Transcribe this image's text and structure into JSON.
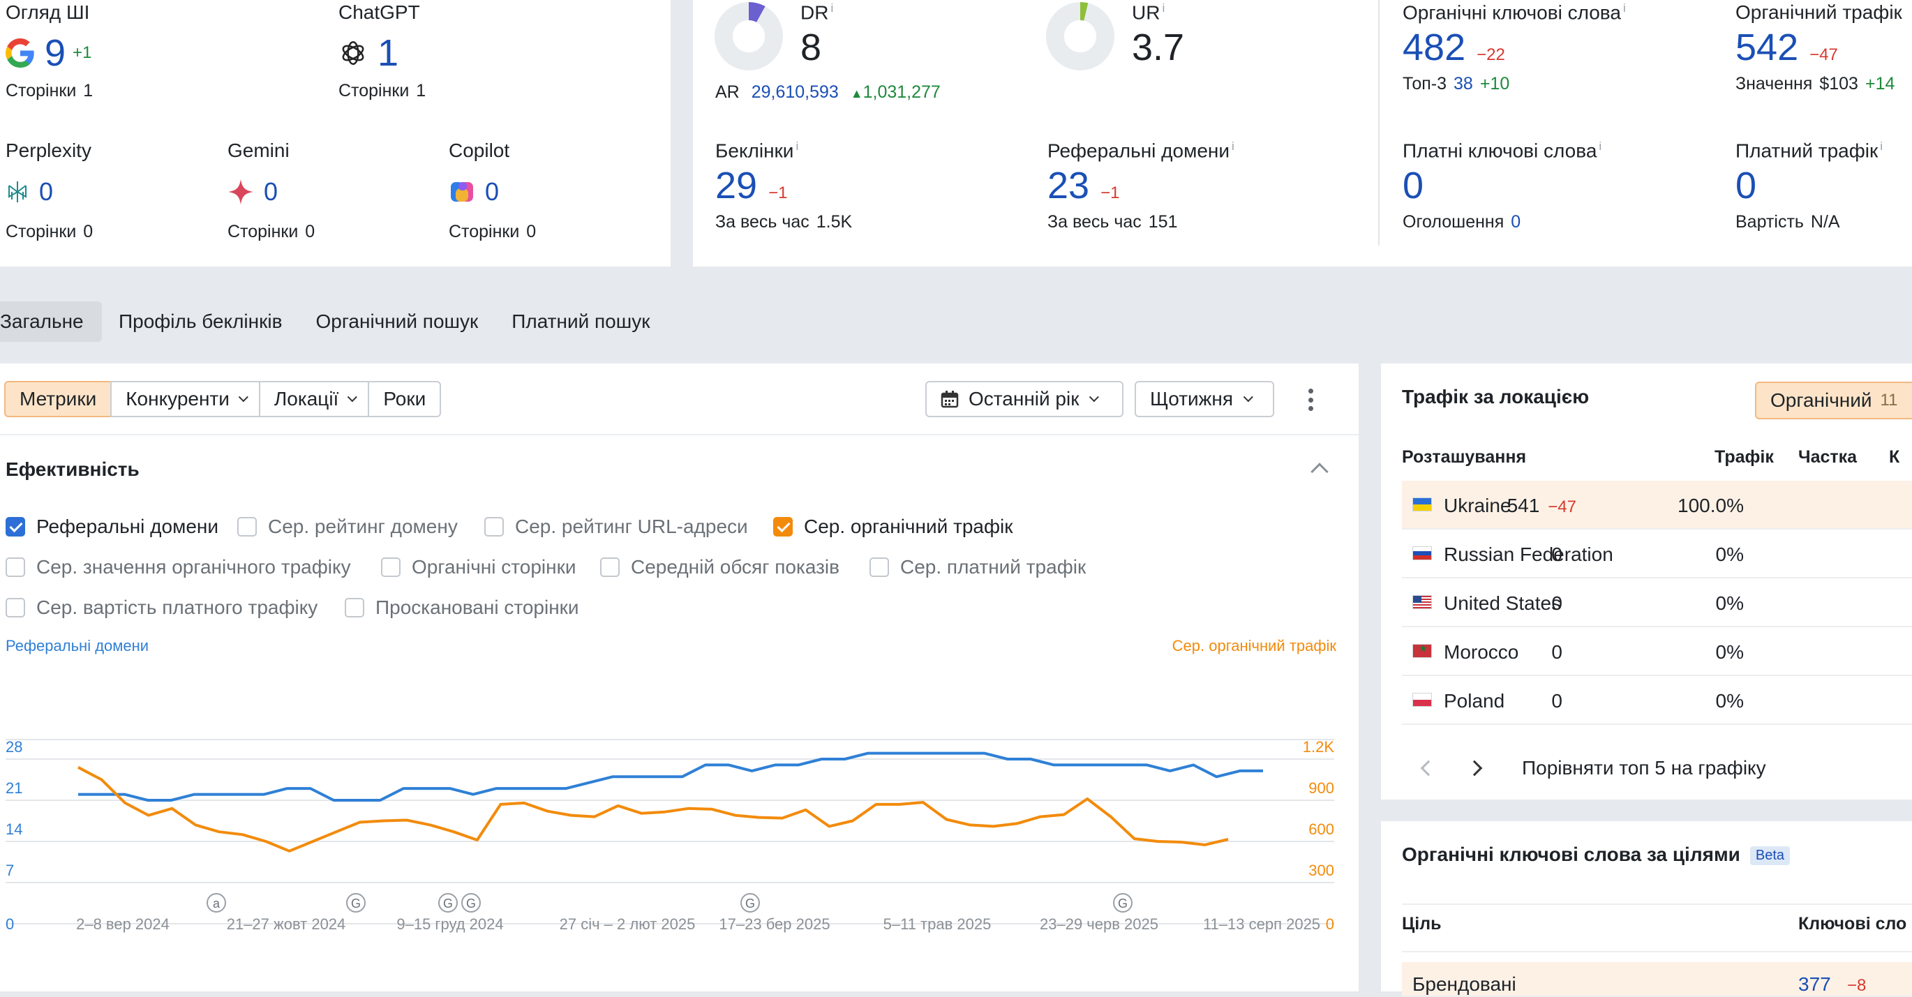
{
  "ai_panel": {
    "ai_overview": {
      "label": "Огляд ШІ",
      "value": "9",
      "delta": "+1",
      "pages_label": "Сторінки",
      "pages": "1"
    },
    "chatgpt": {
      "label": "ChatGPT",
      "value": "1",
      "pages_label": "Сторінки",
      "pages": "1"
    },
    "perplexity": {
      "label": "Perplexity",
      "value": "0",
      "pages_label": "Сторінки",
      "pages": "0"
    },
    "gemini": {
      "label": "Gemini",
      "value": "0",
      "pages_label": "Сторінки",
      "pages": "0"
    },
    "copilot": {
      "label": "Copilot",
      "value": "0",
      "pages_label": "Сторінки",
      "pages": "0"
    }
  },
  "metrics": {
    "dr": {
      "label": "DR",
      "value": "8",
      "info": "i",
      "ring_fraction": 0.08
    },
    "ar": {
      "label": "AR",
      "value": "29,610,593",
      "delta": "1,031,277"
    },
    "ur": {
      "label": "UR",
      "value": "3.7",
      "info": "i",
      "ring_fraction": 0.037
    },
    "backlinks": {
      "label": "Беклінки",
      "info": "i",
      "value": "29",
      "delta": "−1",
      "sub_label": "За весь час",
      "sub_value": "1.5K"
    },
    "ref_domains": {
      "label": "Реферальні домени",
      "info": "i",
      "value": "23",
      "delta": "−1",
      "sub_label": "За весь час",
      "sub_value": "151"
    },
    "organic_keywords": {
      "label": "Органічні ключові слова",
      "info": "i",
      "value": "482",
      "delta": "−22",
      "sub_label": "Топ-3",
      "sub_value": "38",
      "sub_delta": "+10"
    },
    "organic_traffic": {
      "label": "Органічний трафік",
      "value": "542",
      "delta": "−47",
      "sub_label": "Значення",
      "sub_value": "$103",
      "sub_delta": "+14"
    },
    "paid_keywords": {
      "label": "Платні ключові слова",
      "info": "i",
      "value": "0",
      "sub_label": "Оголошення",
      "sub_value": "0"
    },
    "paid_traffic": {
      "label": "Платний трафік",
      "info": "i",
      "value": "0",
      "sub_label": "Вартість",
      "sub_value": "N/A"
    }
  },
  "tabs": [
    "Загальне",
    "Профіль беклінків",
    "Органічний пошук",
    "Платний пошук"
  ],
  "chart_panel": {
    "buttons": [
      "Метрики",
      "Конкуренти",
      "Локації",
      "Роки"
    ],
    "period": "Останній рік",
    "interval": "Щотижня",
    "section_title": "Ефективність",
    "checkboxes": [
      {
        "label": "Реферальні домени",
        "checked": true,
        "color": "#2d6fd6"
      },
      {
        "label": "Сер. рейтинг домену",
        "checked": false
      },
      {
        "label": "Сер. рейтинг URL-адреси",
        "checked": false
      },
      {
        "label": "Сер. органічний трафік",
        "checked": true,
        "color": "#f28b0c"
      },
      {
        "label": "Сер. значення органічного трафіку",
        "checked": false
      },
      {
        "label": "Органічні сторінки",
        "checked": false
      },
      {
        "label": "Середній обсяг показів",
        "checked": false
      },
      {
        "label": "Сер. платний трафік",
        "checked": false
      },
      {
        "label": "Сер. вартість платного трафіку",
        "checked": false
      },
      {
        "label": "Проскановані сторінки",
        "checked": false
      }
    ]
  },
  "chart_data": {
    "type": "line",
    "left_axis_label": "Реферальні домени",
    "right_axis_label": "Сер. органічний трафік",
    "left_ticks": [
      "0",
      "7",
      "14",
      "21",
      "28"
    ],
    "right_ticks": [
      "0",
      "300",
      "600",
      "900",
      "1.2K"
    ],
    "left_ylim": [
      0,
      28
    ],
    "right_ylim": [
      0,
      1200
    ],
    "x_labels": [
      "2–8 вер 2024",
      "21–27 жовт 2024",
      "9–15 груд 2024",
      "27 січ – 2 лют 2025",
      "17–23 бер 2025",
      "5–11 трав 2025",
      "23–29 черв 2025",
      "11–13 серп 2025"
    ],
    "annotations": [
      "a",
      "G",
      "G",
      "G",
      "G",
      "G"
    ],
    "series": [
      {
        "name": "Реферальні домени",
        "axis": "left",
        "color": "#2f80d6",
        "values": [
          22,
          22,
          22,
          21,
          21,
          22,
          22,
          22,
          22,
          23,
          23,
          21,
          21,
          21,
          23,
          23,
          23,
          22,
          23,
          23,
          23,
          23,
          24,
          25,
          25,
          25,
          25,
          27,
          27,
          26,
          27,
          27,
          28,
          28,
          29,
          29,
          29,
          29,
          29,
          29,
          28,
          28,
          27,
          27,
          27,
          27,
          27,
          26,
          27,
          25,
          26,
          26
        ]
      },
      {
        "name": "Сер. органічний трафік",
        "axis": "right",
        "color": "#f28b0c",
        "values": [
          1140,
          1050,
          880,
          790,
          840,
          720,
          670,
          650,
          600,
          530,
          600,
          670,
          740,
          750,
          755,
          720,
          670,
          610,
          870,
          880,
          820,
          790,
          780,
          860,
          805,
          815,
          840,
          835,
          790,
          775,
          770,
          830,
          710,
          750,
          870,
          870,
          885,
          760,
          720,
          710,
          730,
          780,
          795,
          910,
          780,
          620,
          600,
          595,
          575,
          615
        ]
      }
    ]
  },
  "location_card": {
    "title": "Трафік за локацією",
    "pill_label": "Органічний",
    "pill_count": "11",
    "columns": [
      "Розташування",
      "Трафік",
      "Частка",
      "К"
    ],
    "rows": [
      {
        "country": "Ukraine",
        "traffic": "541",
        "delta": "−47",
        "share": "100.0%"
      },
      {
        "country": "Russian Federation",
        "traffic": "0",
        "share": "0%"
      },
      {
        "country": "United States",
        "traffic": "0",
        "share": "0%"
      },
      {
        "country": "Morocco",
        "traffic": "0",
        "share": "0%"
      },
      {
        "country": "Poland",
        "traffic": "0",
        "share": "0%"
      }
    ],
    "compare_label": "Порівняти топ 5 на графіку"
  },
  "keywords_card": {
    "title": "Органічні ключові слова за цілями",
    "beta": "Beta",
    "columns": [
      "Ціль",
      "Ключові сло"
    ],
    "rows": [
      {
        "target": "Брендовані",
        "value": "377",
        "delta": "−8"
      }
    ]
  }
}
